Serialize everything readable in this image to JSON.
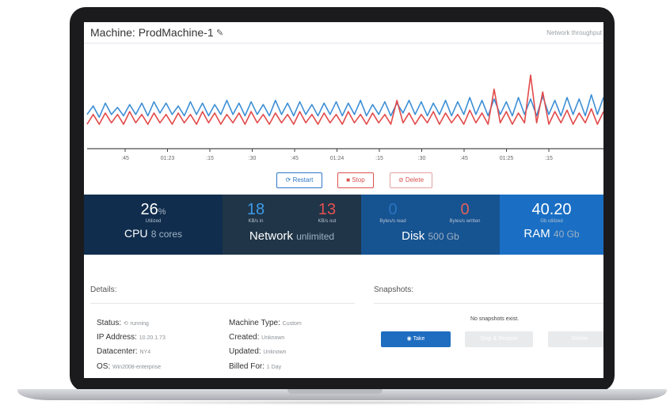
{
  "header": {
    "title": "Machine: ProdMachine-1",
    "edit_icon": "pencil-icon",
    "right_label": "Network throughput"
  },
  "chart_data": {
    "type": "line",
    "x_tick_labels": [
      ":45",
      "01:23",
      ":15",
      ":30",
      ":45",
      "01:24",
      ":15",
      ":30",
      ":45",
      "01:25",
      ":15"
    ],
    "series": [
      {
        "color": "#3d8fd6",
        "values": [
          12,
          18,
          10,
          20,
          12,
          17,
          11,
          19,
          12,
          20,
          11,
          21,
          13,
          20,
          12,
          18,
          11,
          21,
          12,
          20,
          11,
          19,
          12,
          22,
          12,
          20,
          11,
          21,
          12,
          19,
          11,
          22,
          12,
          20,
          11,
          21,
          12,
          19,
          11,
          20,
          12,
          21,
          11,
          20,
          12,
          22,
          11,
          19,
          12,
          21,
          11,
          20,
          13,
          22,
          12,
          21,
          11,
          20,
          12,
          22,
          11,
          21,
          12,
          24,
          12,
          22,
          11,
          23,
          12,
          21,
          11,
          24,
          12,
          23,
          11,
          25,
          12,
          22,
          11,
          24,
          12,
          23,
          11,
          26,
          12,
          24
        ]
      },
      {
        "color": "#e24a4a",
        "values": [
          5,
          12,
          5,
          13,
          6,
          12,
          5,
          14,
          6,
          12,
          5,
          13,
          6,
          12,
          5,
          13,
          6,
          12,
          5,
          14,
          6,
          13,
          5,
          12,
          6,
          13,
          5,
          14,
          6,
          12,
          5,
          13,
          6,
          12,
          5,
          14,
          6,
          12,
          5,
          13,
          6,
          12,
          5,
          14,
          6,
          12,
          5,
          13,
          6,
          12,
          5,
          22,
          6,
          13,
          5,
          12,
          6,
          14,
          5,
          13,
          6,
          12,
          5,
          15,
          6,
          13,
          5,
          30,
          6,
          14,
          5,
          13,
          6,
          40,
          6,
          28,
          5,
          14,
          6,
          15,
          5,
          13,
          6,
          16,
          5,
          14
        ]
      }
    ],
    "ylim": [
      0,
      45
    ]
  },
  "actions": {
    "restart": "Restart",
    "stop": "Stop",
    "delete": "Delete"
  },
  "metrics": {
    "cpu": {
      "value": "26",
      "unit": "%",
      "caption": "Utilized",
      "name": "CPU",
      "detail": "8 cores"
    },
    "network": {
      "in_value": "18",
      "in_caption": "KB/s in",
      "out_value": "13",
      "out_caption": "KB/s out",
      "name": "Network",
      "detail": "unlimited"
    },
    "disk": {
      "read_value": "0",
      "read_caption": "Bytes/s read",
      "write_value": "0",
      "write_caption": "Bytes/s written",
      "name": "Disk",
      "detail": "500 Gb"
    },
    "ram": {
      "value": "40.20",
      "caption": "Gb utilized",
      "name": "RAM",
      "detail": "40 Gb"
    }
  },
  "details": {
    "title": "Details:",
    "status_label": "Status:",
    "status_value": "running",
    "ip_label": "IP Address:",
    "ip_value": "10.20.1.73",
    "datacenter_label": "Datacenter:",
    "datacenter_value": "NY4",
    "os_label": "OS:",
    "os_value": "Win2008-enterprise",
    "type_label": "Machine Type:",
    "type_value": "Custom",
    "created_label": "Created:",
    "created_value": "Unknown",
    "updated_label": "Updated:",
    "updated_value": "Unknown",
    "billed_label": "Billed For:",
    "billed_value": "1 Day"
  },
  "snapshots": {
    "title": "Snapshots:",
    "empty": "No snapshots exist.",
    "take": "Take",
    "restore": "Stop & Restore",
    "delete": "Delete"
  },
  "colors": {
    "accent": "#1f6dc0",
    "series_blue": "#3d8fd6",
    "series_red": "#e24a4a",
    "danger": "#d9534f"
  }
}
